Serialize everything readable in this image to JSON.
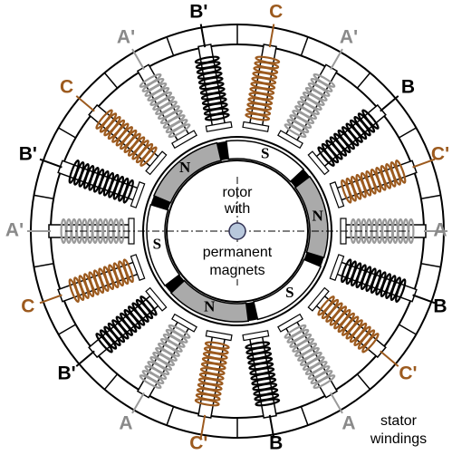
{
  "coils": [
    {
      "label": "B'",
      "color": "#000000"
    },
    {
      "label": "C",
      "color": "#9c5a1e"
    },
    {
      "label": "A'",
      "color": "#9a9a9a"
    },
    {
      "label": "B",
      "color": "#000000"
    },
    {
      "label": "C'",
      "color": "#9c5a1e"
    },
    {
      "label": "A",
      "color": "#9a9a9a"
    },
    {
      "label": "B",
      "color": "#000000"
    },
    {
      "label": "C'",
      "color": "#9c5a1e"
    },
    {
      "label": "A",
      "color": "#9a9a9a"
    },
    {
      "label": "B",
      "color": "#000000"
    },
    {
      "label": "C'",
      "color": "#9c5a1e"
    },
    {
      "label": "A",
      "color": "#9a9a9a"
    },
    {
      "label": "B'",
      "color": "#000000"
    },
    {
      "label": "C",
      "color": "#9c5a1e"
    },
    {
      "label": "A'",
      "color": "#9a9a9a"
    },
    {
      "label": "B'",
      "color": "#000000"
    },
    {
      "label": "C",
      "color": "#9c5a1e"
    },
    {
      "label": "A'",
      "color": "#9a9a9a"
    }
  ],
  "poles": [
    "N",
    "S",
    "N",
    "S",
    "N",
    "S"
  ],
  "rotor_text": [
    "rotor",
    "with",
    "permanent",
    "magnets"
  ],
  "stator_text": [
    "stator",
    "windings"
  ]
}
